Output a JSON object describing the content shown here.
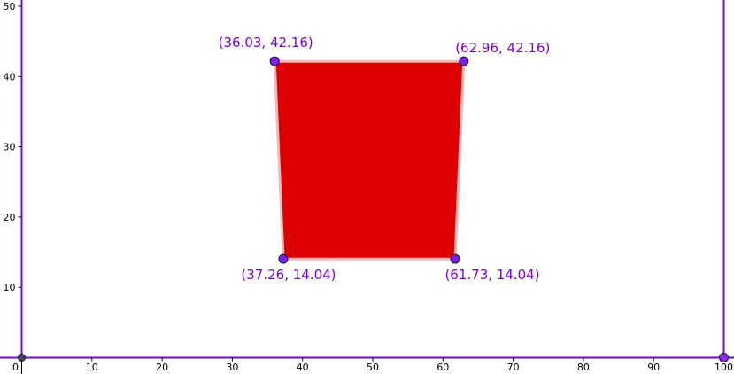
{
  "graph_view": {
    "x_axis": {
      "ticks": [
        {
          "value": 0,
          "label": "0"
        },
        {
          "value": 10,
          "label": "10"
        },
        {
          "value": 20,
          "label": "20"
        },
        {
          "value": 30,
          "label": "30"
        },
        {
          "value": 40,
          "label": "40"
        },
        {
          "value": 50,
          "label": "50"
        },
        {
          "value": 60,
          "label": "60"
        },
        {
          "value": 70,
          "label": "70"
        },
        {
          "value": 80,
          "label": "80"
        },
        {
          "value": 90,
          "label": "90"
        },
        {
          "value": 100,
          "label": "100"
        }
      ]
    },
    "y_axis": {
      "ticks": [
        {
          "value": 10,
          "label": "10"
        },
        {
          "value": 20,
          "label": "20"
        },
        {
          "value": 30,
          "label": "30"
        },
        {
          "value": 40,
          "label": "40"
        },
        {
          "value": 50,
          "label": "50"
        }
      ]
    },
    "polygon": {
      "fill_color": "#dd0000",
      "vertices": [
        {
          "x": 36.03,
          "y": 42.16,
          "label": "(36.03, 42.16)",
          "label_anchor": "above-left"
        },
        {
          "x": 62.96,
          "y": 42.16,
          "label": "(62.96, 42.16)",
          "label_anchor": "above-right"
        },
        {
          "x": 61.73,
          "y": 14.04,
          "label": "(61.73, 14.04)",
          "label_anchor": "below-right"
        },
        {
          "x": 37.26,
          "y": 14.04,
          "label": "(37.26, 14.04)",
          "label_anchor": "below-left"
        }
      ]
    },
    "boundary_lines": [
      {
        "x": 0,
        "color": "#6a0dcc"
      },
      {
        "x": 100,
        "color": "#6a0dcc"
      }
    ],
    "markers": [
      {
        "x": 0,
        "y": 0,
        "color": "#444444"
      },
      {
        "x": 100,
        "y": 0,
        "color": "#8b2be2"
      }
    ],
    "colors": {
      "point_fill": "#7b1fe8",
      "point_label": "#7b00e0",
      "axis": "#000000",
      "boundary": "#6a0dcc",
      "bottom_axis": "#6a0dcc"
    }
  }
}
